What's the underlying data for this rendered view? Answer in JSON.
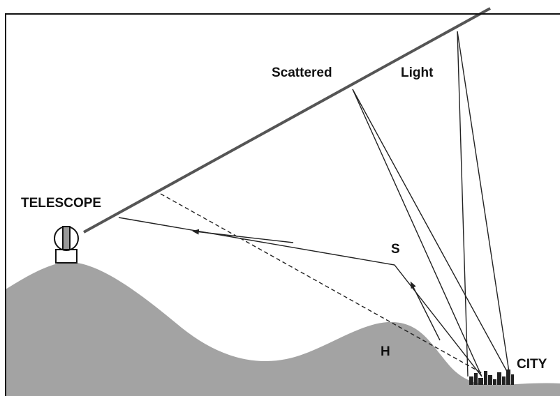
{
  "labels": {
    "scattered": "Scattered",
    "light": "Light",
    "telescope": "TELESCOPE",
    "s": "S",
    "h": "H",
    "city": "CITY"
  }
}
